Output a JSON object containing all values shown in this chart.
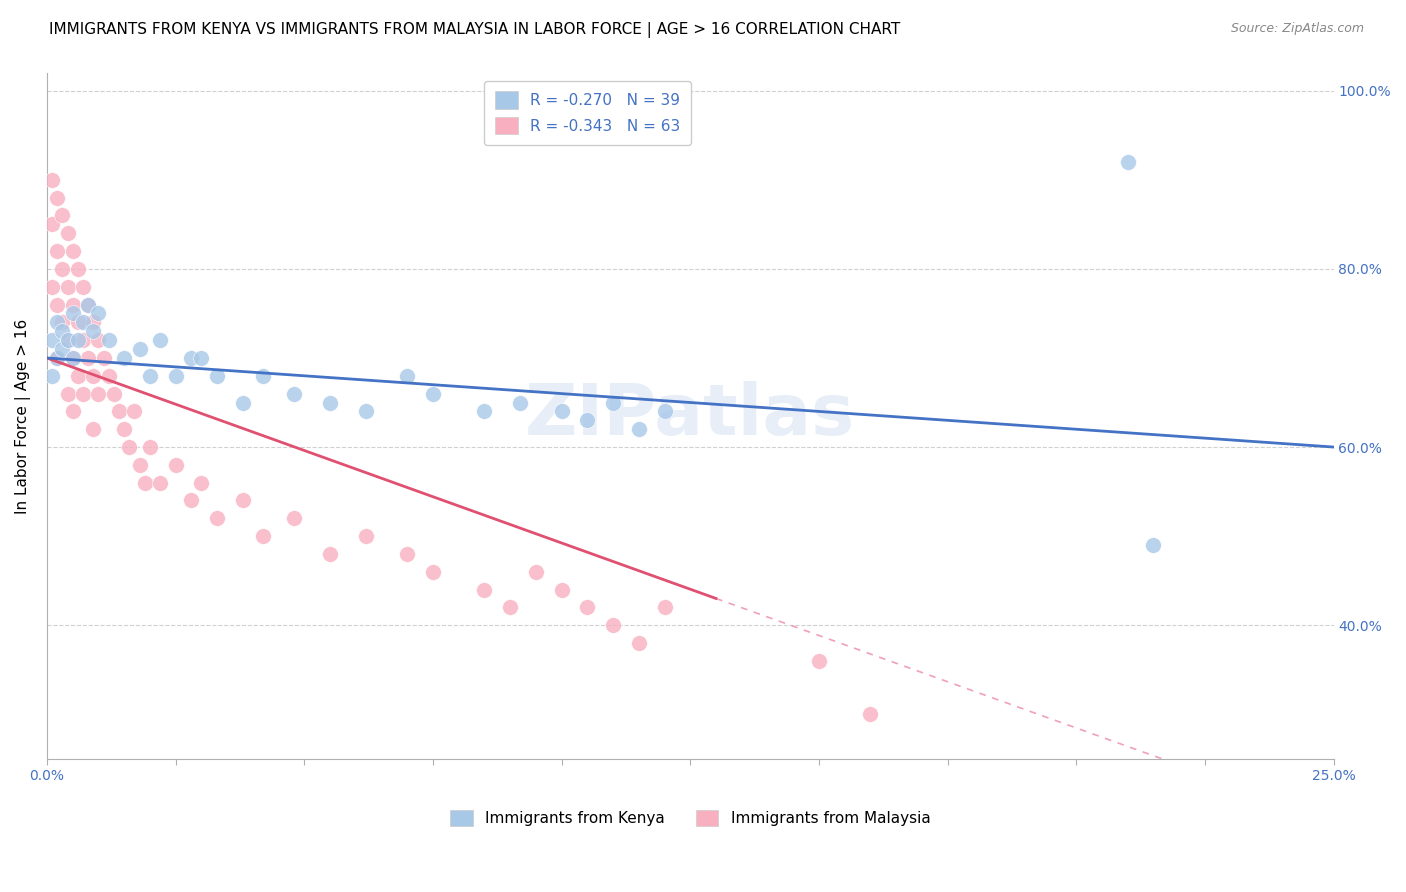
{
  "title": "IMMIGRANTS FROM KENYA VS IMMIGRANTS FROM MALAYSIA IN LABOR FORCE | AGE > 16 CORRELATION CHART",
  "source": "Source: ZipAtlas.com",
  "ylabel": "In Labor Force | Age > 16",
  "xlim": [
    0.0,
    0.25
  ],
  "ylim": [
    0.25,
    1.02
  ],
  "x_ticks": [
    0.0,
    0.025,
    0.05,
    0.075,
    0.1,
    0.125,
    0.15,
    0.175,
    0.2,
    0.225,
    0.25
  ],
  "y_ticks": [
    0.4,
    0.6,
    0.8,
    1.0
  ],
  "kenya_R": -0.27,
  "kenya_N": 39,
  "malaysia_R": -0.343,
  "malaysia_N": 63,
  "kenya_color": "#a8c8e8",
  "malaysia_color": "#f8b0c0",
  "kenya_line_color": "#4472c4",
  "malaysia_line_color": "#e05070",
  "malaysia_dash_color": "#f0a0b8",
  "kenya_scatter_x": [
    0.001,
    0.001,
    0.002,
    0.002,
    0.003,
    0.003,
    0.004,
    0.005,
    0.005,
    0.006,
    0.007,
    0.008,
    0.009,
    0.01,
    0.012,
    0.015,
    0.018,
    0.02,
    0.022,
    0.025,
    0.028,
    0.03,
    0.033,
    0.038,
    0.042,
    0.048,
    0.055,
    0.062,
    0.07,
    0.075,
    0.085,
    0.092,
    0.1,
    0.105,
    0.11,
    0.115,
    0.12,
    0.21,
    0.215
  ],
  "kenya_scatter_y": [
    0.72,
    0.68,
    0.74,
    0.7,
    0.73,
    0.71,
    0.72,
    0.75,
    0.7,
    0.72,
    0.74,
    0.76,
    0.73,
    0.75,
    0.72,
    0.7,
    0.71,
    0.68,
    0.72,
    0.68,
    0.7,
    0.7,
    0.68,
    0.65,
    0.68,
    0.66,
    0.65,
    0.64,
    0.68,
    0.66,
    0.64,
    0.65,
    0.64,
    0.63,
    0.65,
    0.62,
    0.64,
    0.92,
    0.49
  ],
  "malaysia_scatter_x": [
    0.001,
    0.001,
    0.001,
    0.002,
    0.002,
    0.002,
    0.002,
    0.003,
    0.003,
    0.003,
    0.004,
    0.004,
    0.004,
    0.004,
    0.005,
    0.005,
    0.005,
    0.005,
    0.006,
    0.006,
    0.006,
    0.007,
    0.007,
    0.007,
    0.008,
    0.008,
    0.009,
    0.009,
    0.009,
    0.01,
    0.01,
    0.011,
    0.012,
    0.013,
    0.014,
    0.015,
    0.016,
    0.017,
    0.018,
    0.019,
    0.02,
    0.022,
    0.025,
    0.028,
    0.03,
    0.033,
    0.038,
    0.042,
    0.048,
    0.055,
    0.062,
    0.07,
    0.075,
    0.085,
    0.09,
    0.095,
    0.1,
    0.105,
    0.11,
    0.115,
    0.12,
    0.15,
    0.16
  ],
  "malaysia_scatter_y": [
    0.9,
    0.85,
    0.78,
    0.88,
    0.82,
    0.76,
    0.7,
    0.86,
    0.8,
    0.74,
    0.84,
    0.78,
    0.72,
    0.66,
    0.82,
    0.76,
    0.7,
    0.64,
    0.8,
    0.74,
    0.68,
    0.78,
    0.72,
    0.66,
    0.76,
    0.7,
    0.74,
    0.68,
    0.62,
    0.72,
    0.66,
    0.7,
    0.68,
    0.66,
    0.64,
    0.62,
    0.6,
    0.64,
    0.58,
    0.56,
    0.6,
    0.56,
    0.58,
    0.54,
    0.56,
    0.52,
    0.54,
    0.5,
    0.52,
    0.48,
    0.5,
    0.48,
    0.46,
    0.44,
    0.42,
    0.46,
    0.44,
    0.42,
    0.4,
    0.38,
    0.42,
    0.36,
    0.3
  ],
  "title_fontsize": 11,
  "axis_label_fontsize": 11,
  "tick_fontsize": 10,
  "legend_fontsize": 11,
  "source_fontsize": 9
}
